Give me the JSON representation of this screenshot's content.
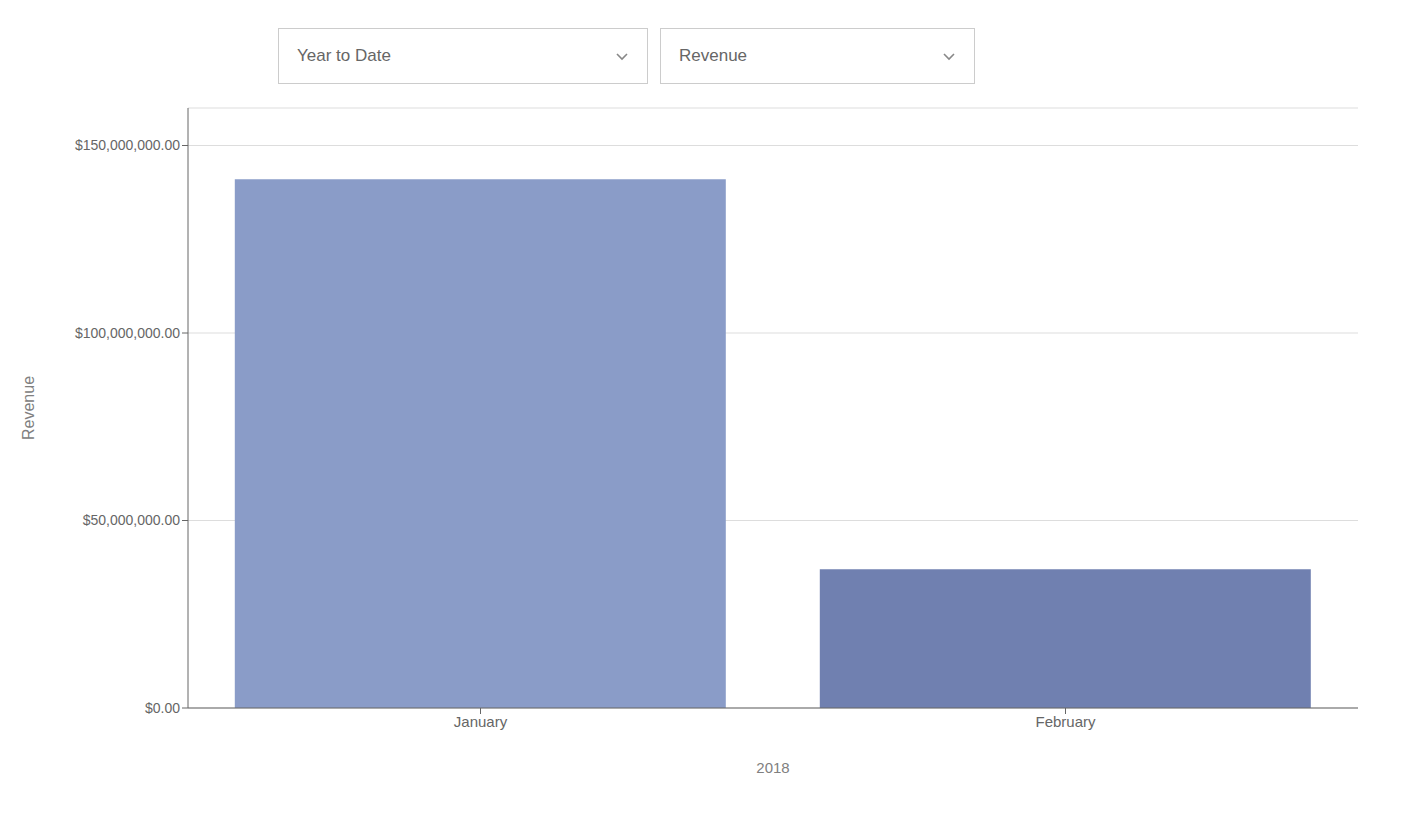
{
  "chart_data": {
    "type": "bar",
    "categories": [
      "January",
      "February"
    ],
    "values": [
      141000000,
      37000000
    ],
    "colors": [
      "#8a9cc8",
      "#7080b0"
    ],
    "ylabel": "Revenue",
    "xlabel": "2018",
    "annotations": [
      "Year to Date",
      "Revenue"
    ],
    "ylim": [
      0,
      160000000
    ],
    "yticks": [
      {
        "value": 0,
        "label": "$0.00"
      },
      {
        "value": 50000000,
        "label": "$50,000,000.00"
      },
      {
        "value": 100000000,
        "label": "$100,000,000.00"
      },
      {
        "value": 150000000,
        "label": "$150,000,000.00"
      }
    ],
    "grid": true
  }
}
